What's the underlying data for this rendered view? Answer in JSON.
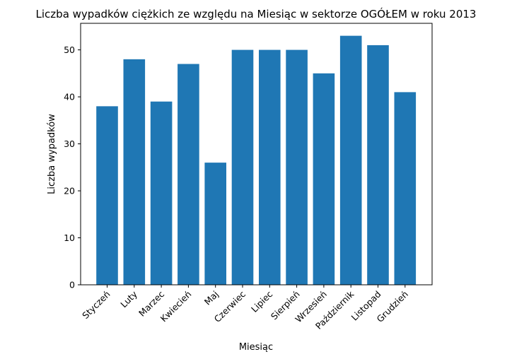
{
  "chart_data": {
    "type": "bar",
    "title": "Liczba wypadków ciężkich ze względu na Miesiąc w sektorze OGÓŁEM   w roku 2013",
    "xlabel": "Miesiąc",
    "ylabel": "Liczba wypadków",
    "categories": [
      "Styczeń",
      "Luty",
      "Marzec",
      "Kwiecień",
      "Maj",
      "Czerwiec",
      "Lipiec",
      "Sierpień",
      "Wrzesień",
      "Październik",
      "Listopad",
      "Grudzień"
    ],
    "values": [
      38,
      48,
      39,
      47,
      26,
      50,
      50,
      50,
      45,
      53,
      51,
      41
    ],
    "ylim": [
      0,
      55.65
    ],
    "yticks": [
      0,
      10,
      20,
      30,
      40,
      50
    ],
    "bar_color": "#1f77b4",
    "grid": false,
    "legend": "none"
  }
}
